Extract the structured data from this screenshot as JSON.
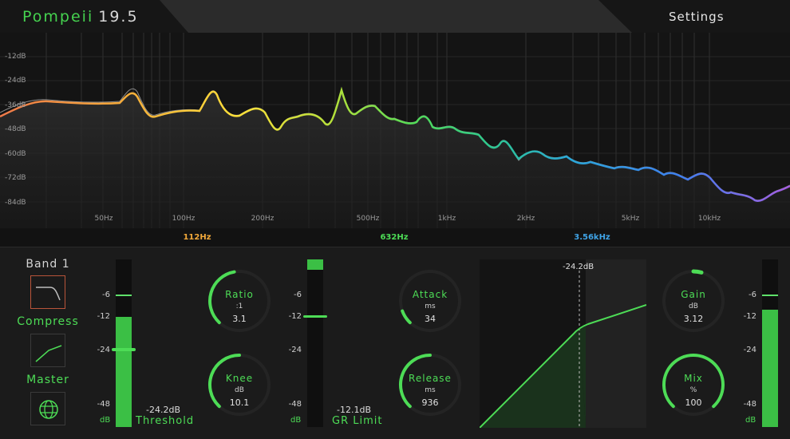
{
  "app": {
    "title": "Pompeii",
    "version": "19.5"
  },
  "header": {
    "settings_label": "Settings"
  },
  "spectrum": {
    "db_labels": [
      "-12dB",
      "-24dB",
      "-36dB",
      "-48dB",
      "-60dB",
      "-72dB",
      "-84dB"
    ],
    "freq_labels": [
      "50Hz",
      "100Hz",
      "200Hz",
      "500Hz",
      "1kHz",
      "2kHz",
      "5kHz",
      "10kHz"
    ],
    "crossovers": [
      {
        "label": "112Hz",
        "color": "#f2a93a"
      },
      {
        "label": "632Hz",
        "color": "#4ddc56"
      },
      {
        "label": "3.56kHz",
        "color": "#3fa3e6"
      }
    ]
  },
  "band": {
    "title": "Band 1",
    "compress_label": "Compress",
    "master_label": "Master"
  },
  "input_meter": {
    "scale": [
      "-6",
      "-12",
      "-24",
      "-48"
    ],
    "unit": "dB",
    "level_db": -12,
    "peak_db": -6
  },
  "threshold": {
    "value": "-24.2dB",
    "label": "Threshold"
  },
  "ratio": {
    "name": "Ratio",
    "unit": ":1",
    "value": "3.1"
  },
  "knee": {
    "name": "Knee",
    "unit": "dB",
    "value": "10.1"
  },
  "gr_meter": {
    "scale": [
      "-6",
      "-12",
      "-24",
      "-48"
    ],
    "unit": "dB"
  },
  "gr_limit": {
    "value": "-12.1dB",
    "label": "GR Limit"
  },
  "attack": {
    "name": "Attack",
    "unit": "ms",
    "value": "34"
  },
  "release": {
    "name": "Release",
    "unit": "ms",
    "value": "936"
  },
  "transfer": {
    "threshold_label": "-24.2dB"
  },
  "gain": {
    "name": "Gain",
    "unit": "dB",
    "value": "3.12"
  },
  "mix": {
    "name": "Mix",
    "unit": "%",
    "value": "100"
  },
  "output_meter": {
    "scale": [
      "-6",
      "-12",
      "-24",
      "-48"
    ],
    "unit": "dB",
    "level_db": -10,
    "peak_db": -6
  },
  "colors": {
    "accent": "#4ddc56",
    "meter_fill": "#3bbf45",
    "band_low": "#f2a93a",
    "band_mid": "#4ddc56",
    "band_high": "#3fa3e6",
    "band_top": "#9b5de5"
  }
}
